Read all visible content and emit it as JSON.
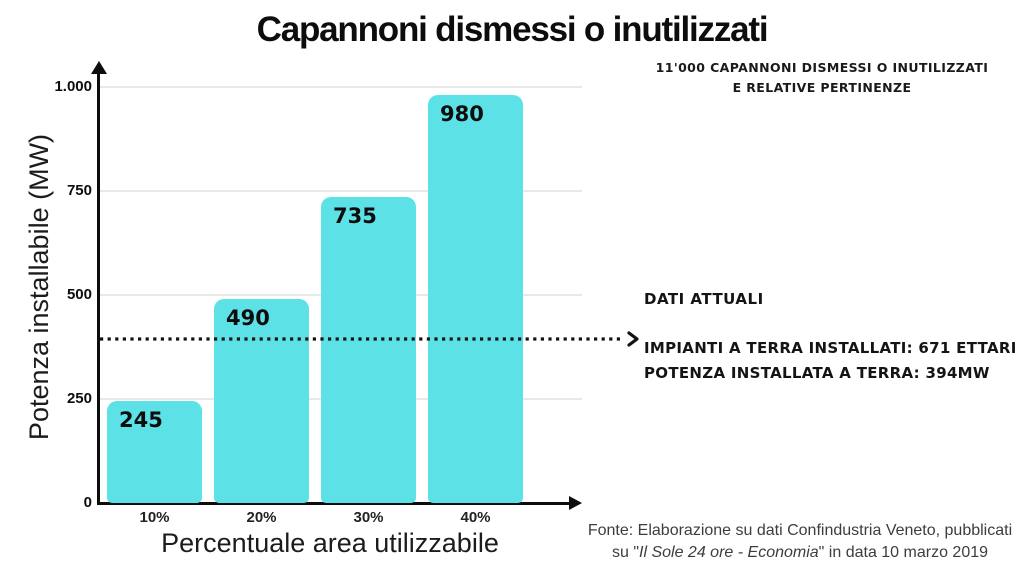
{
  "page": {
    "title": "Capannoni dismessi o inutilizzati"
  },
  "chart_data": {
    "type": "bar",
    "title": "Capannoni dismessi o inutilizzati",
    "categories": [
      "10%",
      "20%",
      "30%",
      "40%"
    ],
    "values": [
      245,
      490,
      735,
      980
    ],
    "value_labels": [
      "245",
      "490",
      "735",
      "980"
    ],
    "xlabel": "Percentuale area utilizzabile",
    "ylabel": "Potenza installabile (MW)",
    "ylim": [
      0,
      1000
    ],
    "yticks": [
      {
        "value": 0,
        "label": "0"
      },
      {
        "value": 250,
        "label": "250"
      },
      {
        "value": 500,
        "label": "500"
      },
      {
        "value": 750,
        "label": "750"
      },
      {
        "value": 1000,
        "label": "1.000"
      }
    ],
    "grid": true,
    "legend": false,
    "bar_color": "#5CE1E6",
    "reference_line": {
      "value": 394,
      "style": "dotted",
      "arrow": true
    }
  },
  "annotations": {
    "top_note_line1": "11'000 CAPANNONI DISMESSI O INUTILIZZATI",
    "top_note_line2": "E RELATIVE PERTINENZE",
    "dati_attuali": "DATI ATTUALI",
    "info_line1": "IMPIANTI A TERRA INSTALLATI: 671 ETTARI",
    "info_line2": "POTENZA INSTALLATA A TERRA: 394MW"
  },
  "footer": {
    "line1": "Fonte: Elaborazione su dati Confindustria Veneto, pubblicati",
    "line2_prefix": "su \"",
    "line2_italic": "Il Sole 24 ore - Economia",
    "line2_suffix": "\" in data 10 marzo 2019"
  },
  "colors": {
    "bar": "#5CE1E6",
    "axis": "#0d0d0d",
    "gridline": "#e8e8e8",
    "footer_text": "#3d3d3d"
  }
}
